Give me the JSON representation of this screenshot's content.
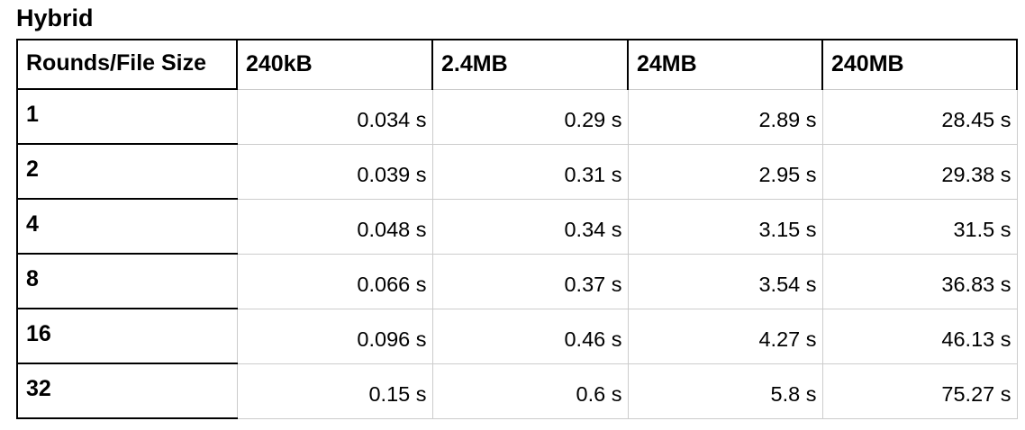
{
  "title": "Hybrid",
  "colors": {
    "border_strong": "#000000",
    "border_light": "#cccccc",
    "text": "#000000",
    "background": "#ffffff"
  },
  "chart_data": {
    "type": "table",
    "title": "Hybrid",
    "columns": [
      "Rounds/File Size",
      "240kB",
      "2.4MB",
      "24MB",
      "240MB"
    ],
    "units": "s",
    "rows": [
      {
        "label": "1",
        "values": [
          "0.034 s",
          "0.29 s",
          "2.89 s",
          "28.45 s"
        ],
        "seconds": [
          0.034,
          0.29,
          2.89,
          28.45
        ]
      },
      {
        "label": "2",
        "values": [
          "0.039 s",
          "0.31 s",
          "2.95 s",
          "29.38 s"
        ],
        "seconds": [
          0.039,
          0.31,
          2.95,
          29.38
        ]
      },
      {
        "label": "4",
        "values": [
          "0.048 s",
          "0.34 s",
          "3.15 s",
          "31.5 s"
        ],
        "seconds": [
          0.048,
          0.34,
          3.15,
          31.5
        ]
      },
      {
        "label": "8",
        "values": [
          "0.066 s",
          "0.37 s",
          "3.54 s",
          "36.83 s"
        ],
        "seconds": [
          0.066,
          0.37,
          3.54,
          36.83
        ]
      },
      {
        "label": "16",
        "values": [
          "0.096 s",
          "0.46 s",
          "4.27 s",
          "46.13 s"
        ],
        "seconds": [
          0.096,
          0.46,
          4.27,
          46.13
        ]
      },
      {
        "label": "32",
        "values": [
          "0.15 s",
          "0.6 s",
          "5.8 s",
          "75.27 s"
        ],
        "seconds": [
          0.15,
          0.6,
          5.8,
          75.27
        ]
      }
    ]
  }
}
